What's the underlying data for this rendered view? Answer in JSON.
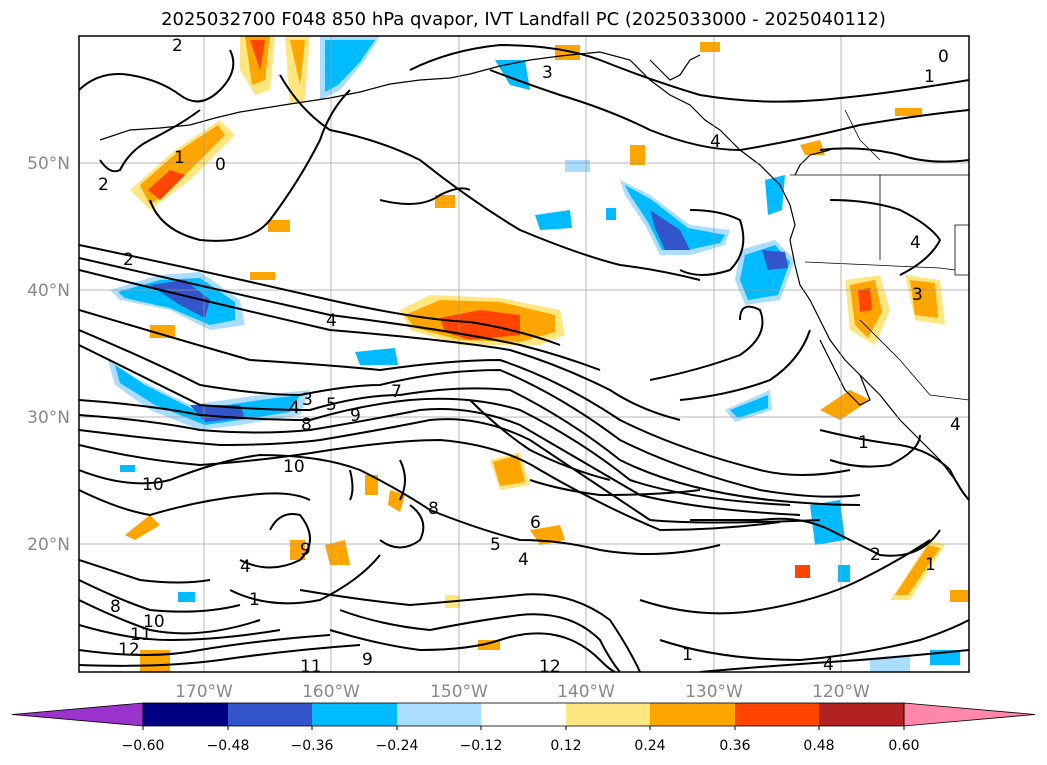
{
  "title": "2025032700 F048 850 hPa qvapor, IVT Landfall PC (2025033000 - 2025040112)",
  "lat_labels": [
    "50°N",
    "40°N",
    "30°N",
    "20°N"
  ],
  "lon_labels": [
    "170°W",
    "160°W",
    "150°W",
    "140°W",
    "130°W",
    "120°W"
  ],
  "colorbar": {
    "ticks": [
      "−0.60",
      "−0.48",
      "−0.36",
      "−0.24",
      "−0.12",
      "0.12",
      "0.24",
      "0.36",
      "0.48",
      "0.60"
    ],
    "colors": [
      "#9933cc",
      "#000080",
      "#3355cc",
      "#00bbff",
      "#aaddff",
      "#ffffff",
      "#ffe680",
      "#ffa500",
      "#ff4500",
      "#b22222",
      "#ff88aa"
    ]
  },
  "contour_labels": [
    "2",
    "1",
    "0",
    "2",
    "2",
    "4",
    "5",
    "4",
    "3",
    "8",
    "9",
    "10",
    "10",
    "8",
    "6",
    "5",
    "4",
    "3",
    "1",
    "0",
    "1",
    "3",
    "7",
    "8",
    "11",
    "12",
    "9",
    "10",
    "11",
    "12",
    "4",
    "1",
    "4",
    "4",
    "2",
    "1",
    "4",
    "1",
    "9",
    "4"
  ]
}
